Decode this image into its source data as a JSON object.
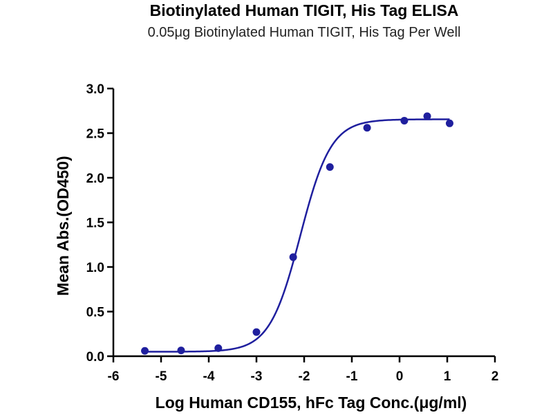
{
  "chart_data": {
    "type": "scatter",
    "title": "Biotinylated Human TIGIT, His Tag ELISA",
    "subtitle": "0.05μg Biotinylated Human TIGIT, His Tag Per Well",
    "xlabel": "Log Human CD155, hFc Tag Conc.(μg/ml)",
    "ylabel": "Mean Abs.(OD450)",
    "xlim": [
      -6,
      2
    ],
    "ylim": [
      0,
      3
    ],
    "xticks": [
      -6,
      -5,
      -4,
      -3,
      -2,
      -1,
      0,
      1,
      2
    ],
    "yticks": [
      0.0,
      0.5,
      1.0,
      1.5,
      2.0,
      2.5,
      3.0
    ],
    "xtick_labels": [
      "-6",
      "-5",
      "-4",
      "-3",
      "-2",
      "-1",
      "0",
      "1",
      "2"
    ],
    "ytick_labels": [
      "0.0",
      "0.5",
      "1.0",
      "1.5",
      "2.0",
      "2.5",
      "3.0"
    ],
    "grid": false,
    "series": [
      {
        "x": [
          -5.34,
          -4.58,
          -3.8,
          -3.0,
          -2.23,
          -1.46,
          -0.68,
          0.1,
          0.58,
          1.05
        ],
        "y": [
          0.06,
          0.065,
          0.09,
          0.27,
          1.11,
          2.12,
          2.56,
          2.64,
          2.69,
          2.61
        ],
        "color": "#1f1f9e"
      }
    ],
    "fit": {
      "type": "4PL",
      "bottom": 0.05,
      "top": 2.655,
      "logEC50": -2.08,
      "hillslope": 1.35,
      "color": "#1f1f9e"
    }
  }
}
